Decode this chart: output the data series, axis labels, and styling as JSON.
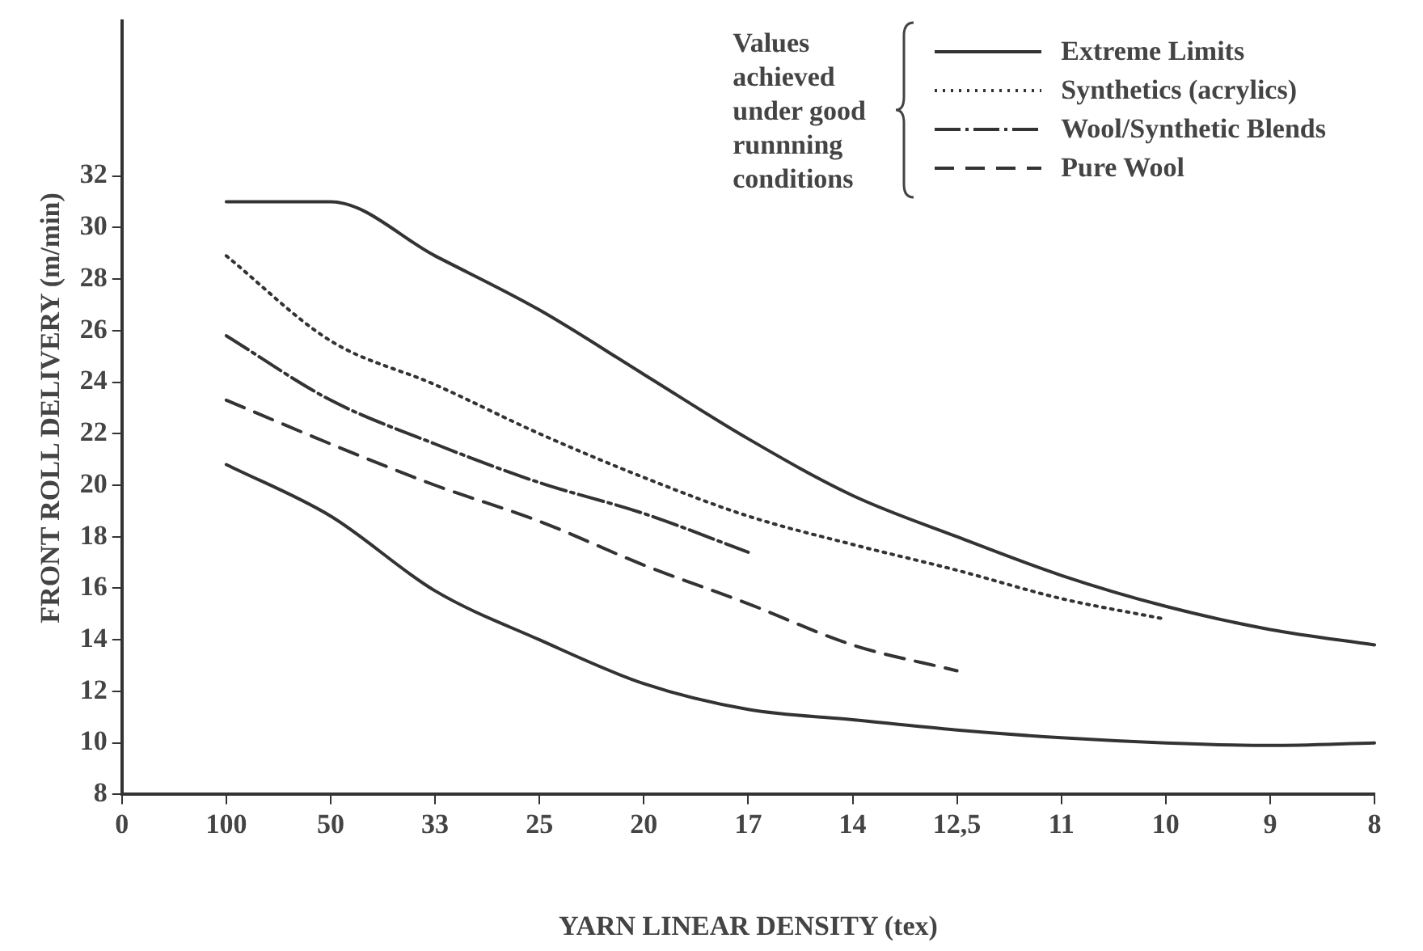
{
  "chart_data": {
    "type": "line",
    "xlabel": "YARN LINEAR DENSITY (tex)",
    "ylabel": "FRONT ROLL DELIVERY (m/min)",
    "legend_title": "Values achieved under good runnning conditions",
    "legend": "top right",
    "grid": false,
    "marker": "none",
    "categories": [
      "0",
      "100",
      "50",
      "33",
      "25",
      "20",
      "17",
      "14",
      "12,5",
      "11",
      "10",
      "9",
      "8"
    ],
    "ylim": [
      8,
      38
    ],
    "yticks": [
      8,
      10,
      12,
      14,
      16,
      18,
      20,
      22,
      24,
      26,
      28,
      30,
      32
    ],
    "series": [
      {
        "name": "Extreme Limits",
        "color": "#333333",
        "line_style": "solid",
        "values": [
          null,
          31.0,
          31.0,
          28.9,
          26.8,
          24.3,
          21.8,
          19.6,
          18.0,
          16.5,
          15.3,
          14.4,
          13.8
        ]
      },
      {
        "name": "Synthetics (acrylics)",
        "color": "#333333",
        "line_style": "dotted",
        "values": [
          null,
          28.9,
          25.6,
          23.9,
          22.0,
          20.3,
          18.8,
          17.7,
          16.7,
          15.6,
          14.8,
          null,
          null
        ]
      },
      {
        "name": "Wool/Synthetic Blends",
        "color": "#333333",
        "line_style": "dashdot",
        "values": [
          null,
          25.8,
          23.3,
          21.6,
          20.1,
          18.9,
          17.4,
          null,
          null,
          null,
          null,
          null,
          null
        ]
      },
      {
        "name": "Pure Wool",
        "color": "#333333",
        "line_style": "dashed",
        "values": [
          null,
          23.3,
          21.6,
          20.0,
          18.6,
          16.9,
          15.4,
          13.8,
          12.8,
          null,
          null,
          null,
          null
        ]
      },
      {
        "color": "#333333",
        "line_style": "solid",
        "values": [
          null,
          20.8,
          18.8,
          15.9,
          14.0,
          12.3,
          11.3,
          10.9,
          10.5,
          10.2,
          10.0,
          9.9,
          10.0
        ]
      }
    ]
  }
}
